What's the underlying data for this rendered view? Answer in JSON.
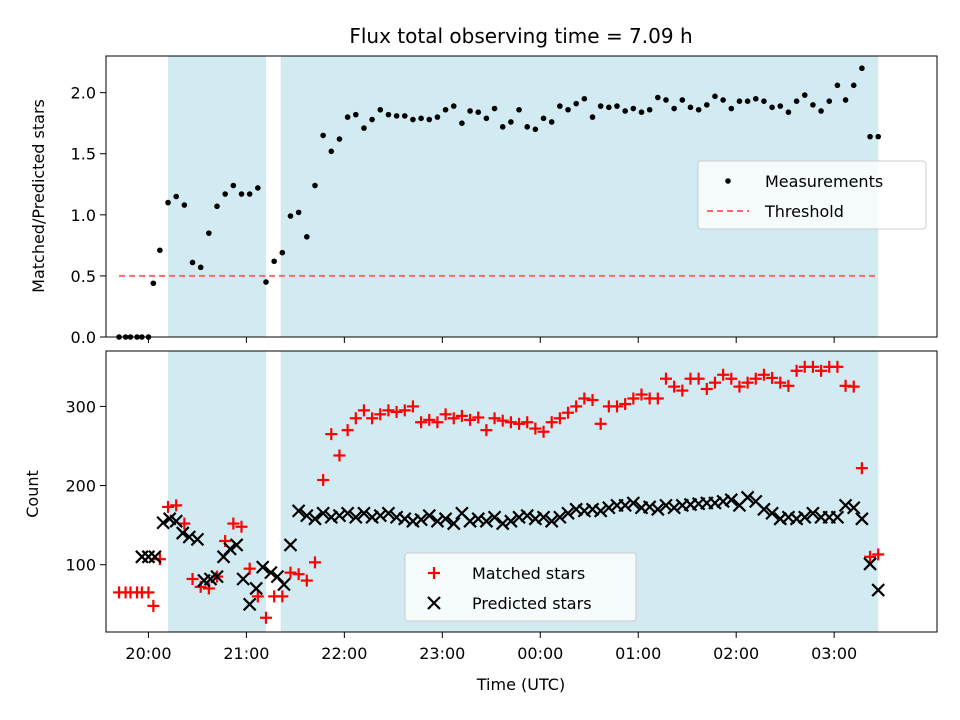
{
  "chart_data": [
    {
      "type": "scatter",
      "title": "Flux total observing time = 7.09 h",
      "ylabel": "Matched/Predicted stars",
      "xlabel": "",
      "ylim": [
        0,
        2.3
      ],
      "yticks": [
        0,
        0.5,
        1.0,
        1.5,
        2.0
      ],
      "ytick_labels": [
        "0.0",
        "0.5",
        "1.0",
        "1.5",
        "2.0"
      ],
      "xlim": [
        "19:34",
        "04:03"
      ],
      "xtick_labels": [],
      "shaded_regions": [
        [
          "20:12",
          "21:12"
        ],
        [
          "21:21",
          "03:27"
        ]
      ],
      "shade_color": "#add8e6",
      "legend_placement": "center-right",
      "series": [
        {
          "name": "Measurements",
          "color": "#000000",
          "marker": "dot",
          "x": [
            "19:42",
            "19:46",
            "19:49",
            "19:53",
            "19:56",
            "20:00",
            "20:03",
            "20:07",
            "20:12",
            "20:17",
            "20:22",
            "20:27",
            "20:32",
            "20:37",
            "20:42",
            "20:47",
            "20:52",
            "20:57",
            "21:02",
            "21:07",
            "21:12",
            "21:17",
            "21:22",
            "21:27",
            "21:32",
            "21:37",
            "21:42",
            "21:47",
            "21:52",
            "21:57",
            "22:02",
            "22:07",
            "22:12",
            "22:17",
            "22:22",
            "22:27",
            "22:32",
            "22:37",
            "22:42",
            "22:47",
            "22:52",
            "22:57",
            "23:02",
            "23:07",
            "23:12",
            "23:17",
            "23:22",
            "23:27",
            "23:32",
            "23:37",
            "23:42",
            "23:47",
            "23:52",
            "23:57",
            "00:02",
            "00:07",
            "00:12",
            "00:17",
            "00:22",
            "00:27",
            "00:32",
            "00:37",
            "00:42",
            "00:47",
            "00:52",
            "00:57",
            "01:02",
            "01:07",
            "01:12",
            "01:17",
            "01:22",
            "01:27",
            "01:32",
            "01:37",
            "01:42",
            "01:47",
            "01:52",
            "01:57",
            "02:02",
            "02:07",
            "02:12",
            "02:17",
            "02:22",
            "02:27",
            "02:32",
            "02:37",
            "02:42",
            "02:47",
            "02:52",
            "02:57",
            "03:02",
            "03:07",
            "03:12",
            "03:17",
            "03:22",
            "03:27"
          ],
          "y": [
            0,
            0,
            0,
            0,
            0,
            0,
            0.44,
            0.71,
            1.1,
            1.15,
            1.08,
            0.61,
            0.57,
            0.85,
            1.07,
            1.17,
            1.24,
            1.17,
            1.17,
            1.22,
            0.45,
            0.62,
            0.69,
            0.99,
            1.02,
            0.82,
            1.24,
            1.65,
            1.52,
            1.62,
            1.8,
            1.82,
            1.71,
            1.78,
            1.86,
            1.82,
            1.81,
            1.81,
            1.78,
            1.79,
            1.78,
            1.8,
            1.86,
            1.89,
            1.75,
            1.85,
            1.84,
            1.79,
            1.87,
            1.72,
            1.76,
            1.86,
            1.72,
            1.7,
            1.79,
            1.76,
            1.89,
            1.86,
            1.91,
            1.95,
            1.8,
            1.89,
            1.88,
            1.89,
            1.85,
            1.87,
            1.84,
            1.86,
            1.96,
            1.94,
            1.87,
            1.94,
            1.88,
            1.86,
            1.9,
            1.97,
            1.94,
            1.87,
            1.93,
            1.93,
            1.95,
            1.93,
            1.88,
            1.89,
            1.84,
            1.93,
            1.98,
            1.9,
            1.85,
            1.93,
            2.06,
            1.94,
            2.06,
            2.2,
            1.64,
            1.64
          ]
        },
        {
          "name": "Threshold",
          "color": "#ff6b6b",
          "style": "dashed",
          "x": [
            "19:42",
            "03:27"
          ],
          "y": [
            0.5,
            0.5
          ]
        }
      ]
    },
    {
      "type": "scatter",
      "title": "",
      "ylabel": "Count",
      "xlabel": "Time (UTC)",
      "ylim": [
        15,
        370
      ],
      "yticks": [
        100,
        200,
        300
      ],
      "ytick_labels": [
        "100",
        "200",
        "300"
      ],
      "xlim": [
        "19:34",
        "04:03"
      ],
      "xticks": [
        "20:00",
        "21:00",
        "22:00",
        "23:00",
        "00:00",
        "01:00",
        "02:00",
        "03:00"
      ],
      "xtick_labels": [
        "20:00",
        "21:00",
        "22:00",
        "23:00",
        "00:00",
        "01:00",
        "02:00",
        "03:00"
      ],
      "shaded_regions": [
        [
          "20:12",
          "21:12"
        ],
        [
          "21:21",
          "03:27"
        ]
      ],
      "shade_color": "#add8e6",
      "legend_placement": "lower-center",
      "series": [
        {
          "name": "Matched stars",
          "color": "#ff0000",
          "marker": "plus",
          "x": [
            "19:42",
            "19:46",
            "19:49",
            "19:53",
            "19:56",
            "20:00",
            "20:03",
            "20:07",
            "20:12",
            "20:17",
            "20:22",
            "20:27",
            "20:32",
            "20:37",
            "20:42",
            "20:47",
            "20:52",
            "20:57",
            "21:02",
            "21:07",
            "21:12",
            "21:17",
            "21:22",
            "21:27",
            "21:32",
            "21:37",
            "21:42",
            "21:47",
            "21:52",
            "21:57",
            "22:02",
            "22:07",
            "22:12",
            "22:17",
            "22:22",
            "22:27",
            "22:32",
            "22:37",
            "22:42",
            "22:47",
            "22:52",
            "22:57",
            "23:02",
            "23:07",
            "23:12",
            "23:17",
            "23:22",
            "23:27",
            "23:32",
            "23:37",
            "23:42",
            "23:47",
            "23:52",
            "23:57",
            "00:02",
            "00:07",
            "00:12",
            "00:17",
            "00:22",
            "00:27",
            "00:32",
            "00:37",
            "00:42",
            "00:47",
            "00:52",
            "00:57",
            "01:02",
            "01:07",
            "01:12",
            "01:17",
            "01:22",
            "01:27",
            "01:32",
            "01:37",
            "01:42",
            "01:47",
            "01:52",
            "01:57",
            "02:02",
            "02:07",
            "02:12",
            "02:17",
            "02:22",
            "02:27",
            "02:32",
            "02:37",
            "02:42",
            "02:47",
            "02:52",
            "02:57",
            "03:02",
            "03:07",
            "03:12",
            "03:17",
            "03:22",
            "03:27"
          ],
          "y": [
            65,
            65,
            65,
            65,
            65,
            65,
            48,
            107,
            173,
            175,
            152,
            82,
            72,
            70,
            85,
            130,
            152,
            148,
            95,
            60,
            33,
            60,
            60,
            90,
            88,
            80,
            103,
            207,
            265,
            238,
            270,
            285,
            295,
            285,
            290,
            295,
            293,
            295,
            300,
            280,
            283,
            280,
            290,
            285,
            288,
            283,
            286,
            270,
            285,
            282,
            280,
            278,
            280,
            272,
            268,
            280,
            285,
            292,
            300,
            310,
            308,
            278,
            300,
            300,
            303,
            310,
            315,
            310,
            310,
            335,
            325,
            320,
            335,
            335,
            322,
            330,
            340,
            335,
            325,
            330,
            335,
            340,
            336,
            330,
            326,
            345,
            350,
            350,
            345,
            350,
            350,
            326,
            325,
            222,
            110,
            113
          ]
        },
        {
          "name": "Predicted stars",
          "color": "#000000",
          "marker": "x",
          "x": [
            "19:56",
            "20:00",
            "20:04",
            "20:09",
            "20:13",
            "20:17",
            "20:21",
            "20:25",
            "20:30",
            "20:34",
            "20:38",
            "20:42",
            "20:46",
            "20:50",
            "20:54",
            "20:58",
            "21:02",
            "21:06",
            "21:10",
            "21:15",
            "21:19",
            "21:23",
            "21:27",
            "21:32",
            "21:37",
            "21:42",
            "21:47",
            "21:52",
            "21:57",
            "22:02",
            "22:07",
            "22:12",
            "22:17",
            "22:22",
            "22:27",
            "22:32",
            "22:37",
            "22:42",
            "22:47",
            "22:52",
            "22:57",
            "23:02",
            "23:07",
            "23:12",
            "23:17",
            "23:22",
            "23:27",
            "23:32",
            "23:37",
            "23:42",
            "23:47",
            "23:52",
            "23:57",
            "00:02",
            "00:07",
            "00:12",
            "00:17",
            "00:22",
            "00:27",
            "00:32",
            "00:37",
            "00:42",
            "00:47",
            "00:52",
            "00:57",
            "01:02",
            "01:07",
            "01:12",
            "01:17",
            "01:22",
            "01:27",
            "01:32",
            "01:37",
            "01:42",
            "01:47",
            "01:52",
            "01:57",
            "02:02",
            "02:07",
            "02:12",
            "02:17",
            "02:22",
            "02:27",
            "02:32",
            "02:37",
            "02:42",
            "02:47",
            "02:52",
            "02:57",
            "03:02",
            "03:07",
            "03:12",
            "03:17",
            "03:22",
            "03:27"
          ],
          "y": [
            110,
            110,
            110,
            153,
            158,
            155,
            140,
            135,
            132,
            80,
            82,
            85,
            110,
            120,
            125,
            82,
            50,
            70,
            97,
            90,
            85,
            75,
            125,
            168,
            162,
            158,
            165,
            160,
            162,
            165,
            160,
            165,
            160,
            162,
            165,
            160,
            158,
            155,
            157,
            162,
            155,
            158,
            152,
            165,
            155,
            158,
            155,
            160,
            152,
            155,
            160,
            162,
            158,
            160,
            155,
            160,
            165,
            170,
            168,
            170,
            168,
            172,
            175,
            175,
            178,
            172,
            173,
            170,
            175,
            172,
            175,
            176,
            177,
            178,
            178,
            180,
            182,
            175,
            185,
            180,
            170,
            165,
            158,
            160,
            158,
            160,
            165,
            160,
            160,
            160,
            175,
            172,
            158,
            101,
            68
          ]
        }
      ]
    }
  ]
}
